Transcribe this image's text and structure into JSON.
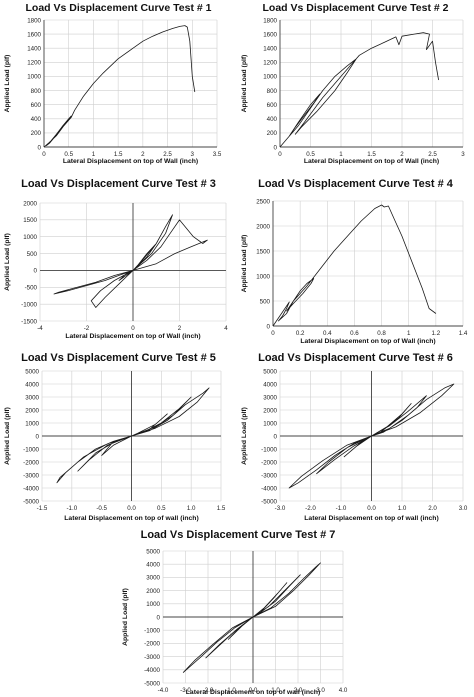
{
  "chart_data": [
    {
      "type": "line",
      "title": "Load Vs Displacement Curve Test # 1",
      "xlabel": "Lateral Displacement on top of Wall (inch)",
      "ylabel": "Applied Load (plf)",
      "xlim": [
        0,
        3.5
      ],
      "ylim": [
        0,
        1800
      ],
      "xticks": [
        "0",
        "0.5",
        "1",
        "1.5",
        "2",
        "2.5",
        "3",
        "3.5"
      ],
      "yticks": [
        "0",
        "200",
        "400",
        "600",
        "800",
        "1000",
        "1200",
        "1400",
        "1600",
        "1800"
      ],
      "grid": true,
      "series": [
        {
          "x": [
            0,
            0.1,
            0.25,
            0.4,
            0.55,
            0.5,
            0.38,
            0.25,
            0.12,
            0.05,
            0.12,
            0.25,
            0.4,
            0.55,
            0.62,
            0.8,
            1.0,
            1.2,
            1.5,
            1.8,
            2.0,
            2.2,
            2.4,
            2.6,
            2.75,
            2.85,
            2.9,
            2.95,
            3.0,
            3.05
          ],
          "y": [
            0,
            60,
            160,
            300,
            440,
            400,
            300,
            180,
            70,
            20,
            60,
            170,
            300,
            420,
            520,
            720,
            900,
            1050,
            1250,
            1400,
            1500,
            1570,
            1630,
            1680,
            1710,
            1720,
            1700,
            1500,
            1000,
            780
          ]
        }
      ]
    },
    {
      "type": "line",
      "title": "Load Vs Displacement Curve Test # 2",
      "xlabel": "Lateral Displacement on top of Wall (inch)",
      "ylabel": "Applied Load (plf)",
      "xlim": [
        0,
        3
      ],
      "ylim": [
        0,
        1800
      ],
      "xticks": [
        "0",
        "0.5",
        "1",
        "1.5",
        "2",
        "2.5",
        "3"
      ],
      "yticks": [
        "0",
        "200",
        "400",
        "600",
        "800",
        "1000",
        "1200",
        "1400",
        "1600",
        "1800"
      ],
      "grid": true,
      "series": [
        {
          "x": [
            0,
            0.15,
            0.3,
            0.5,
            0.65,
            0.55,
            0.4,
            0.25,
            0.15,
            0.3,
            0.5,
            0.7,
            0.9,
            1.1,
            1.25,
            1.1,
            0.9,
            0.6,
            0.35,
            0.25,
            0.4,
            0.7,
            1.0,
            1.2,
            1.3,
            1.5,
            1.7,
            1.9,
            1.95,
            2.0,
            2.2,
            2.35,
            2.45,
            2.4,
            2.5,
            2.55,
            2.6
          ],
          "y": [
            0,
            150,
            350,
            600,
            750,
            620,
            450,
            280,
            150,
            300,
            550,
            800,
            1000,
            1150,
            1250,
            1050,
            800,
            500,
            280,
            180,
            350,
            700,
            1000,
            1200,
            1300,
            1400,
            1480,
            1560,
            1450,
            1570,
            1600,
            1620,
            1600,
            1380,
            1500,
            1200,
            950
          ]
        }
      ]
    },
    {
      "type": "line",
      "title": "Load Vs Displacement Curve Test # 3",
      "xlabel": "Lateral Displacement on top of Wall (inch)",
      "ylabel": "Applied Load (plf)",
      "xlim": [
        -4,
        4
      ],
      "ylim": [
        -1500,
        2000
      ],
      "xticks": [
        "-4",
        "-2",
        "0",
        "2",
        "4"
      ],
      "yticks": [
        "-1500",
        "-1000",
        "-500",
        "0",
        "500",
        "1000",
        "1500",
        "2000"
      ],
      "grid": true,
      "series": [
        {
          "x": [
            0,
            0.6,
            1.2,
            1.6,
            2.0,
            2.6,
            3.0,
            3.2,
            2.5,
            1.8,
            1.0,
            0.4,
            0,
            -0.5,
            -1.2,
            -2.0,
            -2.8,
            -3.4,
            -3.2,
            -2.4,
            -1.6,
            -0.8,
            0,
            0.8,
            1.4,
            1.7,
            1.4,
            1.0,
            0.4,
            0,
            -0.6,
            -1.2,
            -1.6,
            -1.8,
            -1.4,
            -0.8,
            0,
            0.6,
            1.0,
            0.6,
            0.2,
            0,
            -0.4,
            -0.6,
            -0.3,
            0
          ],
          "y": [
            0,
            300,
            700,
            1100,
            1500,
            1000,
            800,
            900,
            700,
            500,
            200,
            80,
            0,
            -120,
            -300,
            -450,
            -600,
            -700,
            -650,
            -500,
            -350,
            -150,
            0,
            500,
            1100,
            1650,
            1300,
            800,
            300,
            0,
            -400,
            -800,
            -1100,
            -900,
            -600,
            -300,
            0,
            400,
            800,
            500,
            150,
            0,
            -200,
            -300,
            -100,
            0
          ]
        }
      ]
    },
    {
      "type": "line",
      "title": "Load Vs Displacement Curve Test # 4",
      "xlabel": "Lateral Displacement on top of Wall (inch)",
      "ylabel": "Applied Load (plf)",
      "xlim": [
        0,
        1.4
      ],
      "ylim": [
        0,
        2500
      ],
      "xticks": [
        "0",
        "0.2",
        "0.4",
        "0.6",
        "0.8",
        "1",
        "1.2",
        "1.4"
      ],
      "yticks": [
        "0",
        "500",
        "1000",
        "1500",
        "2000",
        "2500"
      ],
      "grid": true,
      "series": [
        {
          "x": [
            0,
            0.05,
            0.1,
            0.12,
            0.1,
            0.07,
            0.04,
            0.1,
            0.15,
            0.2,
            0.25,
            0.3,
            0.28,
            0.22,
            0.15,
            0.1,
            0.15,
            0.25,
            0.35,
            0.45,
            0.55,
            0.65,
            0.75,
            0.8,
            0.82,
            0.85,
            0.9,
            0.95,
            1.0,
            1.05,
            1.1,
            1.15,
            1.2
          ],
          "y": [
            0,
            200,
            400,
            480,
            350,
            200,
            100,
            250,
            500,
            700,
            850,
            950,
            850,
            650,
            450,
            300,
            500,
            800,
            1150,
            1500,
            1800,
            2100,
            2350,
            2420,
            2380,
            2400,
            2100,
            1800,
            1450,
            1100,
            750,
            350,
            250
          ]
        }
      ]
    },
    {
      "type": "line",
      "title": "Load Vs Displacement Curve Test # 5",
      "xlabel": "Lateral Displacement on top of wall (inch)",
      "ylabel": "Applied Load (plf)",
      "xlim": [
        -1.5,
        1.5
      ],
      "ylim": [
        -5000,
        5000
      ],
      "xticks": [
        "-1.5",
        "-1.0",
        "-0.5",
        "0.0",
        "0.5",
        "1.0",
        "1.5"
      ],
      "yticks": [
        "-5000",
        "-4000",
        "-3000",
        "-2000",
        "-1000",
        "0",
        "1000",
        "2000",
        "3000",
        "4000",
        "5000"
      ],
      "grid": true,
      "series": [
        {
          "x": [
            0,
            0.3,
            0.6,
            0.9,
            1.2,
            1.3,
            1.1,
            0.8,
            0.4,
            0,
            -0.3,
            -0.6,
            -0.9,
            -1.2,
            -1.25,
            -1.1,
            -0.8,
            -0.4,
            0,
            0.4,
            0.7,
            1.0,
            0.8,
            0.5,
            0.2,
            0,
            -0.3,
            -0.6,
            -0.9,
            -0.7,
            -0.4,
            0,
            0.3,
            0.6,
            0.4,
            0.1,
            0,
            -0.3,
            -0.5,
            -0.3,
            0
          ],
          "y": [
            0,
            400,
            1200,
            2400,
            3300,
            3700,
            2600,
            1500,
            600,
            0,
            -400,
            -1000,
            -2000,
            -3200,
            -3600,
            -2800,
            -1600,
            -600,
            0,
            700,
            1600,
            3000,
            2100,
            1000,
            300,
            0,
            -500,
            -1300,
            -2700,
            -1800,
            -700,
            0,
            500,
            1700,
            900,
            200,
            0,
            -400,
            -1500,
            -700,
            0
          ]
        }
      ]
    },
    {
      "type": "line",
      "title": "Load Vs Displacement Curve Test # 6",
      "xlabel": "Lateral Displacement on top of wall (inch)",
      "ylabel": "Applied Load (plf)",
      "xlim": [
        -3.0,
        3.0
      ],
      "ylim": [
        -5000,
        5000
      ],
      "xticks": [
        "-3.0",
        "-2.0",
        "-1.0",
        "0.0",
        "1.0",
        "2.0",
        "3.0"
      ],
      "yticks": [
        "-5000",
        "-4000",
        "-3000",
        "-2000",
        "-1000",
        "0",
        "1000",
        "2000",
        "3000",
        "4000",
        "5000"
      ],
      "grid": true,
      "series": [
        {
          "x": [
            0,
            0.6,
            1.2,
            1.8,
            2.4,
            2.7,
            2.3,
            1.6,
            0.8,
            0,
            -0.6,
            -1.2,
            -1.8,
            -2.4,
            -2.7,
            -2.3,
            -1.6,
            -0.8,
            0,
            0.6,
            1.2,
            1.8,
            1.5,
            1.0,
            0.4,
            0,
            -0.6,
            -1.2,
            -1.8,
            -1.4,
            -0.8,
            0,
            0.5,
            1.0,
            1.3,
            0.9,
            0.3,
            0,
            -0.4,
            -0.9,
            -0.5,
            0
          ],
          "y": [
            0,
            600,
            1600,
            2800,
            3700,
            4000,
            3100,
            1800,
            700,
            0,
            -600,
            -1500,
            -2600,
            -3600,
            -4000,
            -3100,
            -1900,
            -700,
            0,
            800,
            1900,
            3100,
            2200,
            1200,
            300,
            0,
            -800,
            -1800,
            -2900,
            -2000,
            -900,
            0,
            700,
            1700,
            2500,
            1400,
            300,
            0,
            -600,
            -1600,
            -800,
            0
          ]
        }
      ]
    },
    {
      "type": "line",
      "title": "Load Vs Displacement Curve Test # 7",
      "xlabel": "Lateral Displacement on top of wall (inch)",
      "ylabel": "Applied Load (plf)",
      "xlim": [
        -4.0,
        4.0
      ],
      "ylim": [
        -5000,
        5000
      ],
      "xticks": [
        "-4.0",
        "-3.0",
        "-2.0",
        "-1.0",
        "0.0",
        "1.0",
        "2.0",
        "3.0",
        "4.0"
      ],
      "yticks": [
        "-5000",
        "-4000",
        "-3000",
        "-2000",
        "-1000",
        "0",
        "1000",
        "2000",
        "3000",
        "4000",
        "5000"
      ],
      "grid": true,
      "series": [
        {
          "x": [
            0,
            0.8,
            1.6,
            2.3,
            2.8,
            3.0,
            2.5,
            1.8,
            1.0,
            0,
            -0.8,
            -1.6,
            -2.3,
            -2.9,
            -3.1,
            -2.6,
            -1.8,
            -0.9,
            0,
            0.7,
            1.4,
            2.1,
            1.6,
            1.0,
            0.3,
            0,
            -0.7,
            -1.4,
            -2.1,
            -1.5,
            -0.7,
            0,
            0.5,
            1.1,
            1.5,
            0.9,
            0.3,
            0,
            -0.5,
            -1.1,
            -0.6,
            0
          ],
          "y": [
            0,
            700,
            1800,
            3000,
            3800,
            4100,
            3200,
            2000,
            800,
            0,
            -800,
            -1900,
            -3000,
            -3900,
            -4200,
            -3300,
            -2100,
            -800,
            0,
            800,
            2000,
            3200,
            2300,
            1200,
            300,
            0,
            -900,
            -2000,
            -3100,
            -2100,
            -900,
            0,
            700,
            1800,
            2600,
            1400,
            300,
            0,
            -700,
            -1700,
            -800,
            0
          ]
        }
      ]
    }
  ]
}
